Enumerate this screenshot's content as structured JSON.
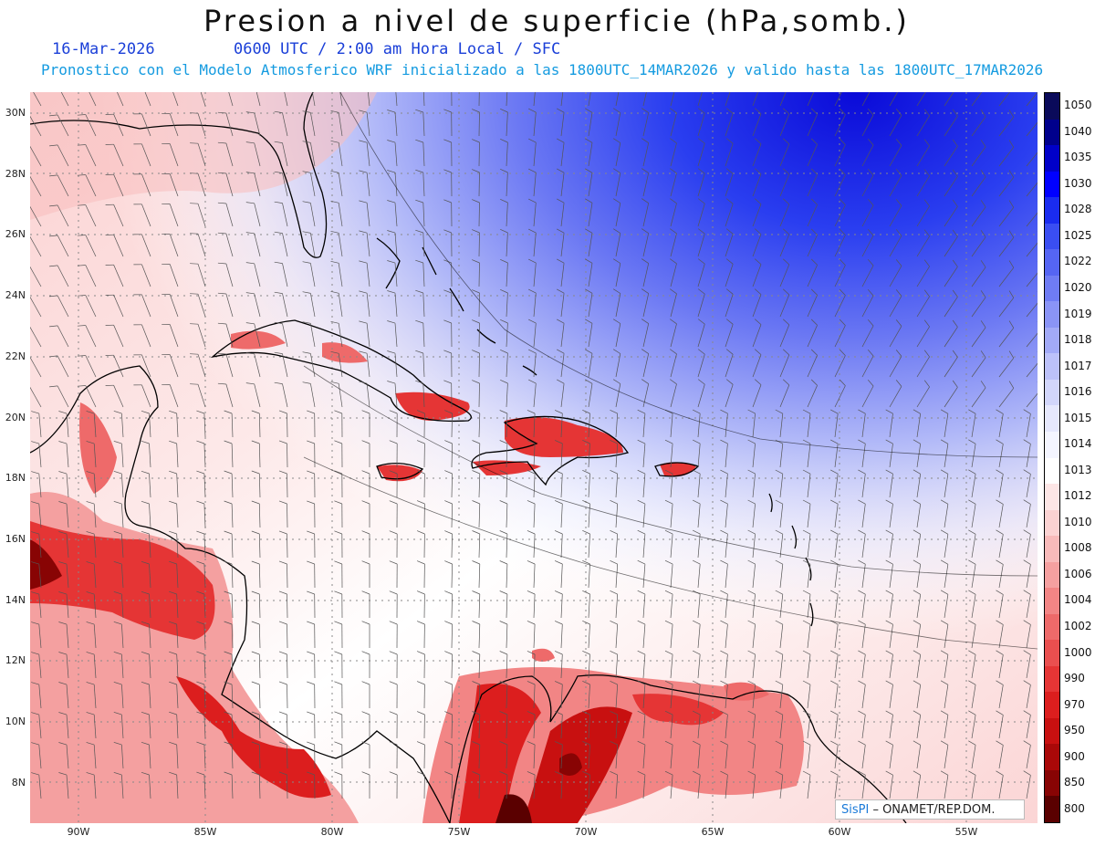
{
  "header": {
    "title": "Presion a nivel de superficie (hPa,somb.)",
    "date": "16-Mar-2026",
    "valid_time": "0600 UTC / 2:00 am Hora Local / SFC",
    "model_info": "Pronostico con el Modelo Atmosferico WRF inicializado a las 1800UTC_14MAR2026 y valido hasta las  1800UTC_17MAR2026"
  },
  "axes": {
    "lat_labels": [
      "30N",
      "28N",
      "26N",
      "24N",
      "22N",
      "20N",
      "18N",
      "16N",
      "14N",
      "12N",
      "10N",
      "8N"
    ],
    "lon_labels": [
      "90W",
      "85W",
      "80W",
      "75W",
      "70W",
      "65W",
      "60W",
      "55W"
    ]
  },
  "colorbar": {
    "levels": [
      "1050",
      "1040",
      "1035",
      "1030",
      "1028",
      "1025",
      "1022",
      "1020",
      "1019",
      "1018",
      "1017",
      "1016",
      "1015",
      "1014",
      "1013",
      "1012",
      "1010",
      "1008",
      "1006",
      "1004",
      "1002",
      "1000",
      "990",
      "970",
      "950",
      "900",
      "850",
      "800"
    ],
    "colors": [
      "#0a0a5a",
      "#00008c",
      "#0000c8",
      "#0000ff",
      "#1a2cf0",
      "#3a4ef2",
      "#5565f3",
      "#6f7cf4",
      "#8a94f6",
      "#a2aaf7",
      "#bcc1f9",
      "#d2d6fb",
      "#e6e8fd",
      "#f4f5ff",
      "#ffffff",
      "#fde6e6",
      "#fbd2d2",
      "#f8baba",
      "#f5a0a0",
      "#f28585",
      "#ee6a6a",
      "#ea4f4f",
      "#e53535",
      "#dc1e1e",
      "#c81010",
      "#aa0808",
      "#880404",
      "#5a0000"
    ]
  },
  "credit": {
    "brand": "SisPI",
    "text": " – ONAMET/REP.DOM."
  }
}
